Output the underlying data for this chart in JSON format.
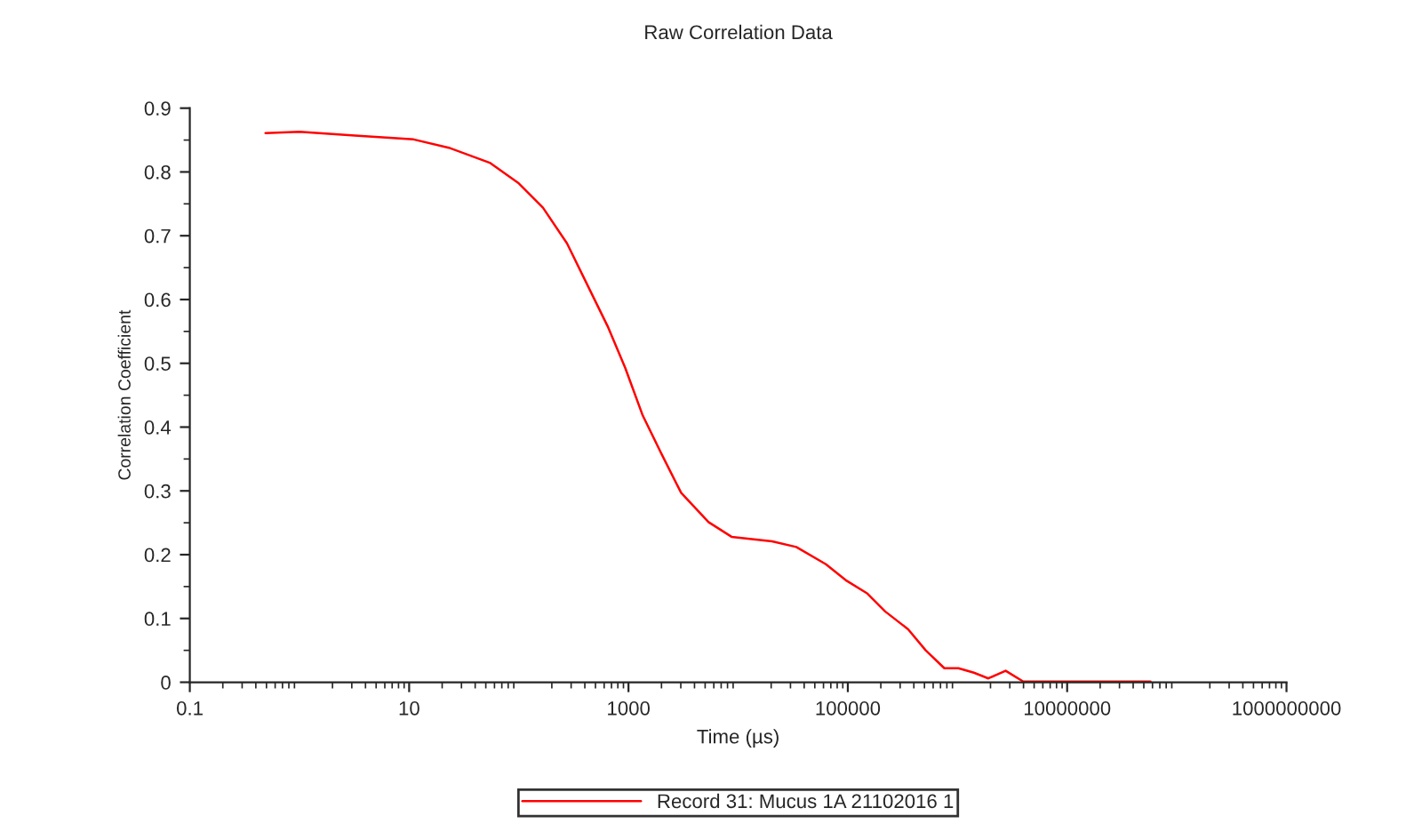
{
  "chart_data": {
    "type": "line",
    "title": "Raw Correlation Data",
    "xlabel": "Time (µs)",
    "ylabel": "Correlation Coefficient",
    "log": "x",
    "xlim": [
      0.1,
      1000000000
    ],
    "xticks": [
      0.1,
      10,
      1000,
      100000,
      10000000,
      1000000000
    ],
    "ylim": [
      0,
      0.9
    ],
    "yticks": [
      0,
      0.1,
      0.2,
      0.3,
      0.4,
      0.5,
      0.6,
      0.7,
      0.8,
      0.9
    ],
    "grid": false,
    "legend": "bottom",
    "marker": "none",
    "line_style": "solid",
    "series": [
      {
        "name": "Record 31: Mucus 1A 21102016 1",
        "color": "#ff0000",
        "x": [
          0.49,
          1.0,
          3.2,
          11,
          23,
          55,
          100,
          166,
          275,
          447,
          646,
          933,
          1350,
          2000,
          3020,
          5370,
          8710,
          20400,
          33900,
          63100,
          97700,
          151000,
          219000,
          355000,
          513000,
          759000,
          1020000,
          1410000,
          1910000,
          2750000,
          3980000,
          57500000
        ],
        "values": [
          0.861,
          0.863,
          0.857,
          0.851,
          0.838,
          0.814,
          0.782,
          0.744,
          0.688,
          0.614,
          0.558,
          0.493,
          0.418,
          0.358,
          0.297,
          0.251,
          0.228,
          0.221,
          0.212,
          0.185,
          0.159,
          0.139,
          0.111,
          0.083,
          0.05,
          0.022,
          0.022,
          0.015,
          0.006,
          0.018,
          0.001,
          0.001
        ]
      }
    ]
  }
}
